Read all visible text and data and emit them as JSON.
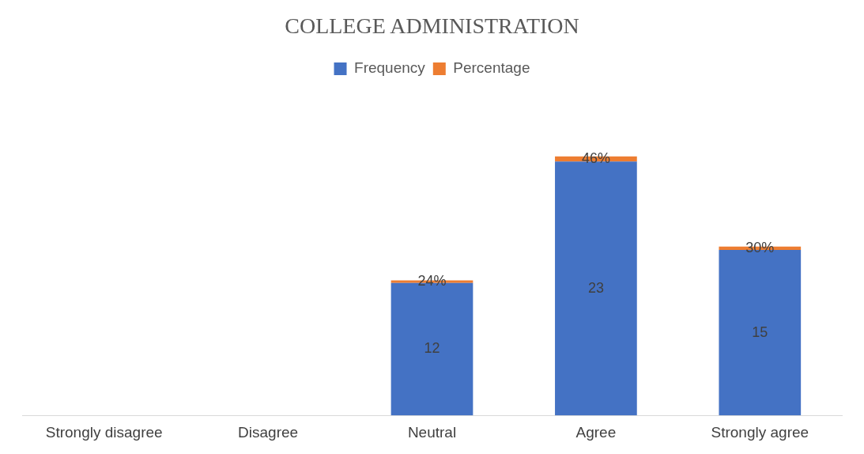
{
  "chart_data": {
    "type": "bar",
    "title": "COLLEGE ADMINISTRATION",
    "stacked": true,
    "legend": "top",
    "categories": [
      "Strongly disagree",
      "Disagree",
      "Neutral",
      "Agree",
      "Strongly agree"
    ],
    "series": [
      {
        "name": "Frequency",
        "color": "#4472c4",
        "values": [
          null,
          null,
          12,
          23,
          15
        ],
        "value_labels": [
          null,
          null,
          "12",
          "23",
          "15"
        ]
      },
      {
        "name": "Percentage",
        "color": "#ed7d31",
        "values": [
          null,
          null,
          0.24,
          0.46,
          0.3
        ],
        "value_labels": [
          null,
          null,
          "24%",
          "46%",
          "30%"
        ]
      }
    ]
  }
}
